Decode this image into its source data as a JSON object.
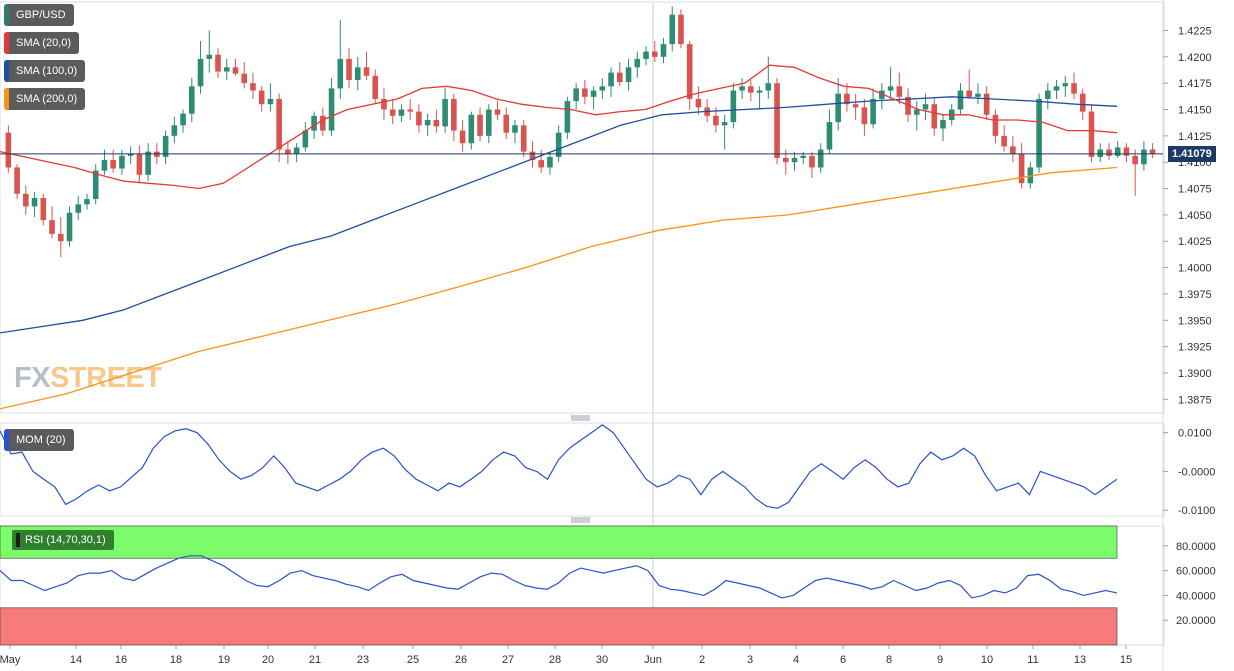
{
  "app": {
    "logo_prefix": "FX",
    "logo_suffix": "STREET"
  },
  "legend": [
    {
      "label": "GBP/USD",
      "color": "#2e7d6f"
    },
    {
      "label": "SMA (20,0)",
      "color": "#e53935"
    },
    {
      "label": "SMA (100,0)",
      "color": "#1e4fa0"
    },
    {
      "label": "SMA (200,0)",
      "color": "#f7931a"
    }
  ],
  "current_price": "1.41079",
  "colors": {
    "up": "#2e8b74",
    "down": "#d9534f",
    "sma20": "#e53935",
    "sma100": "#1e4fa0",
    "sma200": "#f7931a",
    "mom": "#2952cc",
    "rsi": "#2952cc",
    "price_line": "#1b3a66",
    "overbought": "#7cfc6b",
    "oversold": "#f77b7b"
  },
  "chart_data": [
    {
      "type": "candlestick",
      "title": "GBP/USD",
      "price_axis": {
        "ylim": [
          1.3862,
          1.4252
        ],
        "ticks": [
          "1.4225",
          "1.4200",
          "1.4175",
          "1.4150",
          "1.4125",
          "1.4100",
          "1.4075",
          "1.4050",
          "1.4025",
          "1.4000",
          "1.3975",
          "1.3950",
          "1.3925",
          "1.3900",
          "1.3875"
        ]
      },
      "x_labels": [
        "May",
        "14",
        "16",
        "18",
        "19",
        "20",
        "21",
        "23",
        "25",
        "26",
        "27",
        "28",
        "30",
        "Jun",
        "2",
        "3",
        "4",
        "6",
        "8",
        "9",
        "10",
        "11",
        "13",
        "15"
      ],
      "candles_ohlc": [
        [
          1.4128,
          1.4135,
          1.409,
          1.4095
        ],
        [
          1.4095,
          1.4098,
          1.4065,
          1.407
        ],
        [
          1.407,
          1.4078,
          1.405,
          1.4058
        ],
        [
          1.4058,
          1.4072,
          1.4048,
          1.4066
        ],
        [
          1.4066,
          1.407,
          1.404,
          1.4045
        ],
        [
          1.4045,
          1.4058,
          1.4028,
          1.4032
        ],
        [
          1.4032,
          1.4048,
          1.401,
          1.4025
        ],
        [
          1.4025,
          1.4058,
          1.402,
          1.4052
        ],
        [
          1.4052,
          1.4068,
          1.4045,
          1.406
        ],
        [
          1.406,
          1.407,
          1.4055,
          1.4065
        ],
        [
          1.4065,
          1.4098,
          1.406,
          1.4092
        ],
        [
          1.4092,
          1.4112,
          1.4088,
          1.4102
        ],
        [
          1.4102,
          1.4112,
          1.409,
          1.4094
        ],
        [
          1.4094,
          1.4112,
          1.4088,
          1.4106
        ],
        [
          1.4106,
          1.4115,
          1.4098,
          1.4108
        ],
        [
          1.4108,
          1.4116,
          1.408,
          1.4088
        ],
        [
          1.4088,
          1.4118,
          1.4082,
          1.411
        ],
        [
          1.411,
          1.4118,
          1.4098,
          1.4105
        ],
        [
          1.4105,
          1.413,
          1.4098,
          1.4125
        ],
        [
          1.4125,
          1.4143,
          1.4118,
          1.4135
        ],
        [
          1.4135,
          1.415,
          1.4128,
          1.4146
        ],
        [
          1.4146,
          1.418,
          1.4138,
          1.4172
        ],
        [
          1.4172,
          1.4215,
          1.4165,
          1.4198
        ],
        [
          1.4198,
          1.4225,
          1.4185,
          1.4202
        ],
        [
          1.4202,
          1.4208,
          1.418,
          1.4186
        ],
        [
          1.4186,
          1.4198,
          1.4178,
          1.419
        ],
        [
          1.419,
          1.4198,
          1.4182,
          1.4184
        ],
        [
          1.4184,
          1.4195,
          1.417,
          1.4175
        ],
        [
          1.4175,
          1.4185,
          1.416,
          1.4168
        ],
        [
          1.4168,
          1.4172,
          1.4148,
          1.4155
        ],
        [
          1.4155,
          1.4175,
          1.4148,
          1.416
        ],
        [
          1.416,
          1.4165,
          1.41,
          1.4112
        ],
        [
          1.4112,
          1.412,
          1.4098,
          1.4108
        ],
        [
          1.4108,
          1.4118,
          1.41,
          1.4114
        ],
        [
          1.4114,
          1.4138,
          1.411,
          1.413
        ],
        [
          1.413,
          1.4148,
          1.4122,
          1.4144
        ],
        [
          1.4144,
          1.4152,
          1.4125,
          1.413
        ],
        [
          1.413,
          1.418,
          1.4125,
          1.417
        ],
        [
          1.417,
          1.4235,
          1.416,
          1.4198
        ],
        [
          1.4198,
          1.4208,
          1.417,
          1.4178
        ],
        [
          1.4178,
          1.42,
          1.4168,
          1.419
        ],
        [
          1.419,
          1.4205,
          1.4178,
          1.4182
        ],
        [
          1.4182,
          1.4188,
          1.4155,
          1.416
        ],
        [
          1.416,
          1.417,
          1.414,
          1.415
        ],
        [
          1.415,
          1.416,
          1.4136,
          1.4144
        ],
        [
          1.4144,
          1.4155,
          1.4138,
          1.415
        ],
        [
          1.415,
          1.416,
          1.414,
          1.4148
        ],
        [
          1.4148,
          1.4155,
          1.4128,
          1.4135
        ],
        [
          1.4135,
          1.4146,
          1.4125,
          1.414
        ],
        [
          1.414,
          1.415,
          1.4128,
          1.4134
        ],
        [
          1.4134,
          1.417,
          1.4128,
          1.416
        ],
        [
          1.416,
          1.4165,
          1.412,
          1.413
        ],
        [
          1.413,
          1.414,
          1.411,
          1.4118
        ],
        [
          1.4118,
          1.4148,
          1.4112,
          1.4145
        ],
        [
          1.4145,
          1.4152,
          1.412,
          1.4125
        ],
        [
          1.4125,
          1.4155,
          1.4118,
          1.415
        ],
        [
          1.415,
          1.4158,
          1.414,
          1.4145
        ],
        [
          1.4145,
          1.4152,
          1.4122,
          1.4128
        ],
        [
          1.4128,
          1.414,
          1.4118,
          1.4135
        ],
        [
          1.4135,
          1.414,
          1.4105,
          1.411
        ],
        [
          1.411,
          1.412,
          1.4095,
          1.4102
        ],
        [
          1.4102,
          1.4112,
          1.409,
          1.4095
        ],
        [
          1.4095,
          1.411,
          1.4088,
          1.4105
        ],
        [
          1.4105,
          1.4135,
          1.41,
          1.4128
        ],
        [
          1.4128,
          1.4162,
          1.4122,
          1.4158
        ],
        [
          1.4158,
          1.4175,
          1.415,
          1.417
        ],
        [
          1.417,
          1.4178,
          1.4155,
          1.4162
        ],
        [
          1.4162,
          1.4172,
          1.415,
          1.4168
        ],
        [
          1.4168,
          1.418,
          1.416,
          1.4172
        ],
        [
          1.4172,
          1.419,
          1.4162,
          1.4185
        ],
        [
          1.4185,
          1.4195,
          1.4172,
          1.4176
        ],
        [
          1.4176,
          1.4198,
          1.4168,
          1.419
        ],
        [
          1.419,
          1.4205,
          1.418,
          1.4198
        ],
        [
          1.4198,
          1.421,
          1.4192,
          1.4205
        ],
        [
          1.4205,
          1.4215,
          1.4195,
          1.42
        ],
        [
          1.42,
          1.4218,
          1.4194,
          1.4212
        ],
        [
          1.4212,
          1.4248,
          1.4205,
          1.424
        ],
        [
          1.424,
          1.4245,
          1.4208,
          1.4212
        ],
        [
          1.4212,
          1.4215,
          1.415,
          1.416
        ],
        [
          1.416,
          1.4172,
          1.4145,
          1.4152
        ],
        [
          1.4152,
          1.416,
          1.4138,
          1.4144
        ],
        [
          1.4144,
          1.4152,
          1.4128,
          1.4135
        ],
        [
          1.4135,
          1.4145,
          1.4112,
          1.4138
        ],
        [
          1.4138,
          1.4175,
          1.4132,
          1.4168
        ],
        [
          1.4168,
          1.418,
          1.416,
          1.4172
        ],
        [
          1.4172,
          1.4178,
          1.4158,
          1.4166
        ],
        [
          1.4166,
          1.4172,
          1.415,
          1.4168
        ],
        [
          1.4168,
          1.42,
          1.416,
          1.4175
        ],
        [
          1.4175,
          1.418,
          1.4098,
          1.4104
        ],
        [
          1.4104,
          1.4112,
          1.4088,
          1.41
        ],
        [
          1.41,
          1.411,
          1.4092,
          1.4104
        ],
        [
          1.4104,
          1.411,
          1.4098,
          1.4106
        ],
        [
          1.4106,
          1.411,
          1.4085,
          1.4095
        ],
        [
          1.4095,
          1.4118,
          1.409,
          1.4112
        ],
        [
          1.4112,
          1.415,
          1.4108,
          1.4138
        ],
        [
          1.4138,
          1.418,
          1.413,
          1.4165
        ],
        [
          1.4165,
          1.4175,
          1.4148,
          1.4155
        ],
        [
          1.4155,
          1.4165,
          1.414,
          1.4152
        ],
        [
          1.4152,
          1.416,
          1.4125,
          1.4136
        ],
        [
          1.4136,
          1.417,
          1.4132,
          1.416
        ],
        [
          1.416,
          1.4175,
          1.415,
          1.4168
        ],
        [
          1.4168,
          1.419,
          1.416,
          1.4172
        ],
        [
          1.4172,
          1.4185,
          1.4155,
          1.4162
        ],
        [
          1.4162,
          1.417,
          1.4138,
          1.4145
        ],
        [
          1.4145,
          1.4158,
          1.413,
          1.415
        ],
        [
          1.415,
          1.4165,
          1.414,
          1.4155
        ],
        [
          1.4155,
          1.4162,
          1.4125,
          1.4132
        ],
        [
          1.4132,
          1.4145,
          1.412,
          1.414
        ],
        [
          1.414,
          1.4155,
          1.4135,
          1.415
        ],
        [
          1.415,
          1.4175,
          1.4145,
          1.4168
        ],
        [
          1.4168,
          1.4188,
          1.416,
          1.4162
        ],
        [
          1.4162,
          1.4175,
          1.4155,
          1.4165
        ],
        [
          1.4165,
          1.4172,
          1.414,
          1.4145
        ],
        [
          1.4145,
          1.415,
          1.4118,
          1.4125
        ],
        [
          1.4125,
          1.4135,
          1.411,
          1.4115
        ],
        [
          1.4115,
          1.4125,
          1.41,
          1.4108
        ],
        [
          1.4108,
          1.4118,
          1.4075,
          1.408
        ],
        [
          1.408,
          1.41,
          1.4075,
          1.4095
        ],
        [
          1.4095,
          1.4165,
          1.409,
          1.416
        ],
        [
          1.416,
          1.4175,
          1.415,
          1.4168
        ],
        [
          1.4168,
          1.4178,
          1.416,
          1.4172
        ],
        [
          1.4172,
          1.4182,
          1.4162,
          1.4175
        ],
        [
          1.4175,
          1.4185,
          1.416,
          1.4165
        ],
        [
          1.4165,
          1.417,
          1.414,
          1.4148
        ],
        [
          1.4148,
          1.4155,
          1.41,
          1.4105
        ],
        [
          1.4105,
          1.4118,
          1.41,
          1.4112
        ],
        [
          1.4112,
          1.4118,
          1.4102,
          1.4106
        ],
        [
          1.4106,
          1.412,
          1.4104,
          1.4114
        ],
        [
          1.4114,
          1.4118,
          1.41,
          1.4106
        ],
        [
          1.4106,
          1.4112,
          1.4068,
          1.4098
        ],
        [
          1.4098,
          1.412,
          1.4092,
          1.4112
        ],
        [
          1.4112,
          1.4118,
          1.4104,
          1.4108
        ]
      ],
      "sma20": [
        1.411,
        1.4105,
        1.41,
        1.4095,
        1.4088,
        1.4082,
        1.408,
        1.4078,
        1.4075,
        1.408,
        1.4095,
        1.411,
        1.4125,
        1.414,
        1.415,
        1.4155,
        1.416,
        1.417,
        1.4172,
        1.4168,
        1.416,
        1.4155,
        1.4152,
        1.415,
        1.4145,
        1.4148,
        1.415,
        1.4158,
        1.4165,
        1.417,
        1.4175,
        1.4192,
        1.419,
        1.418,
        1.4172,
        1.417,
        1.416,
        1.415,
        1.4145,
        1.4145,
        1.414,
        1.414,
        1.4138,
        1.413,
        1.413,
        1.4128
      ],
      "sma100": [
        1.3938,
        1.3944,
        1.395,
        1.396,
        1.3975,
        1.399,
        1.4005,
        1.402,
        1.403,
        1.4045,
        1.406,
        1.4075,
        1.409,
        1.4105,
        1.412,
        1.4135,
        1.4145,
        1.4148,
        1.415,
        1.4152,
        1.4155,
        1.4158,
        1.416,
        1.4162,
        1.416,
        1.4158,
        1.4155,
        1.4153
      ],
      "sma200": [
        1.3866,
        1.388,
        1.39,
        1.392,
        1.3935,
        1.395,
        1.3965,
        1.3982,
        1.4,
        1.402,
        1.4035,
        1.4045,
        1.405,
        1.406,
        1.407,
        1.408,
        1.409,
        1.4095
      ],
      "mom_axis": {
        "ylim": [
          -0.0115,
          0.0125
        ],
        "ticks": [
          "0.0100",
          "-0.0000",
          "-0.0100"
        ]
      },
      "mom20": [
        0.0105,
        0.0045,
        0.005,
        0.0,
        -0.002,
        -0.004,
        -0.0085,
        -0.007,
        -0.005,
        -0.0035,
        -0.005,
        -0.004,
        -0.0015,
        0.001,
        0.006,
        0.009,
        0.0105,
        0.011,
        0.01,
        0.007,
        0.003,
        0.0,
        -0.002,
        -0.001,
        0.001,
        0.004,
        0.001,
        -0.003,
        -0.004,
        -0.005,
        -0.0035,
        -0.002,
        0.0,
        0.003,
        0.005,
        0.006,
        0.004,
        0.0005,
        -0.002,
        -0.0035,
        -0.005,
        -0.003,
        -0.004,
        -0.002,
        0.0,
        0.003,
        0.005,
        0.004,
        0.001,
        0.0,
        -0.002,
        0.003,
        0.006,
        0.008,
        0.01,
        0.012,
        0.01,
        0.006,
        0.002,
        -0.002,
        -0.004,
        -0.003,
        -0.001,
        -0.002,
        -0.006,
        -0.002,
        0.0,
        -0.002,
        -0.004,
        -0.007,
        -0.009,
        -0.0095,
        -0.008,
        -0.004,
        0.0,
        0.002,
        0.0,
        -0.002,
        0.001,
        0.003,
        0.001,
        -0.002,
        -0.004,
        -0.003,
        0.002,
        0.005,
        0.003,
        0.004,
        0.006,
        0.004,
        -0.001,
        -0.005,
        -0.004,
        -0.003,
        -0.006,
        0.0,
        -0.001,
        -0.002,
        -0.003,
        -0.004,
        -0.006,
        -0.004,
        -0.002
      ],
      "rsi_axis": {
        "ylim": [
          0,
          96
        ],
        "ticks": [
          "80.0000",
          "60.0000",
          "40.0000",
          "20.0000"
        ],
        "overbought": 70,
        "oversold": 30
      },
      "rsi": [
        60,
        52,
        52,
        48,
        44,
        47,
        50,
        56,
        58,
        58,
        60,
        54,
        52,
        57,
        62,
        66,
        70,
        72,
        72,
        68,
        64,
        58,
        52,
        48,
        47,
        52,
        58,
        60,
        56,
        54,
        52,
        49,
        47,
        44,
        50,
        55,
        57,
        52,
        50,
        48,
        46,
        45,
        50,
        55,
        58,
        57,
        52,
        48,
        46,
        45,
        50,
        58,
        62,
        60,
        58,
        60,
        62,
        64,
        60,
        48,
        45,
        44,
        42,
        40,
        45,
        52,
        50,
        48,
        46,
        42,
        38,
        40,
        46,
        52,
        54,
        52,
        50,
        48,
        45,
        47,
        52,
        48,
        44,
        46,
        50,
        52,
        48,
        38,
        40,
        44,
        42,
        46,
        56,
        57,
        52,
        45,
        43,
        40,
        42,
        44,
        42
      ]
    }
  ]
}
